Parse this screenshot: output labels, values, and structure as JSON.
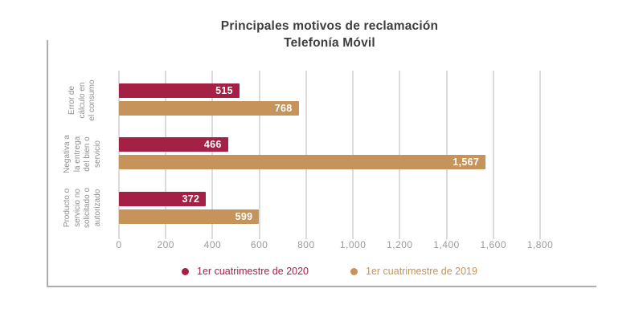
{
  "chart_data": {
    "type": "bar",
    "orientation": "horizontal",
    "title": "Principales motivos de reclamación",
    "subtitle": "Telefonía Móvil",
    "categories": [
      "Error de cálculo en el consumo",
      "Negativa a la entrega del bien o servicio",
      "Producto o servicio no solicitado o autorizado"
    ],
    "category_label_lines": [
      "Error de\ncálculo en\nel consumo",
      "Negativa a\nla entrega\ndel bien o\nservicio",
      "Producto o\nservicio no\nsolicitado o\nautorizado"
    ],
    "series": [
      {
        "name": "1er cuatrimestre de 2020",
        "color": "#A52045",
        "values": [
          515,
          466,
          372
        ],
        "labels": [
          "515",
          "466",
          "372"
        ]
      },
      {
        "name": "1er cuatrimestre de 2019",
        "color": "#C6935A",
        "values": [
          768,
          1567,
          599
        ],
        "labels": [
          "768",
          "1,567",
          "599"
        ]
      }
    ],
    "xlim": [
      0,
      1800
    ],
    "x_ticks": [
      "0",
      "200",
      "400",
      "600",
      "800",
      "1,000",
      "1,200",
      "1,400",
      "1,600",
      "1,800"
    ],
    "grid": "vertical-gridlines",
    "legend_position": "bottom"
  },
  "colors": {
    "background": "#FFFFFF",
    "title_text": "#3E3E3E",
    "axis_tick_text": "#9B9B9B",
    "category_text": "#8F8F8F",
    "gridline": "#DBDBDB",
    "frame_border": "#ADADAD",
    "bar_value_text": "#FFFFFF"
  }
}
